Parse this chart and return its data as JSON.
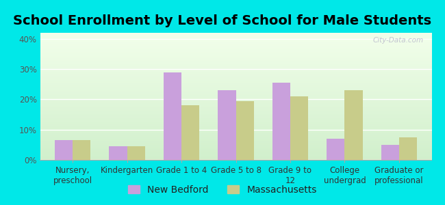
{
  "title": "School Enrollment by Level of School for Male Students",
  "categories": [
    "Nursery,\npreschool",
    "Kindergarten",
    "Grade 1 to 4",
    "Grade 5 to 8",
    "Grade 9 to\n12",
    "College\nundergrad",
    "Graduate or\nprofessional"
  ],
  "new_bedford": [
    6.5,
    4.5,
    29.0,
    23.0,
    25.5,
    7.0,
    5.0
  ],
  "massachusetts": [
    6.5,
    4.5,
    18.0,
    19.5,
    21.0,
    23.0,
    7.5
  ],
  "bar_color_nb": "#c9a0dc",
  "bar_color_ma": "#c8cc8a",
  "background_color": "#00e8e8",
  "ylabel": "",
  "ylim": [
    0,
    42
  ],
  "yticks": [
    0,
    10,
    20,
    30,
    40
  ],
  "ytick_labels": [
    "0%",
    "10%",
    "20%",
    "30%",
    "40%"
  ],
  "legend_nb": "New Bedford",
  "legend_ma": "Massachusetts",
  "title_fontsize": 14,
  "tick_fontsize": 8.5,
  "legend_fontsize": 10,
  "bar_width": 0.33,
  "watermark": "City-Data.com"
}
